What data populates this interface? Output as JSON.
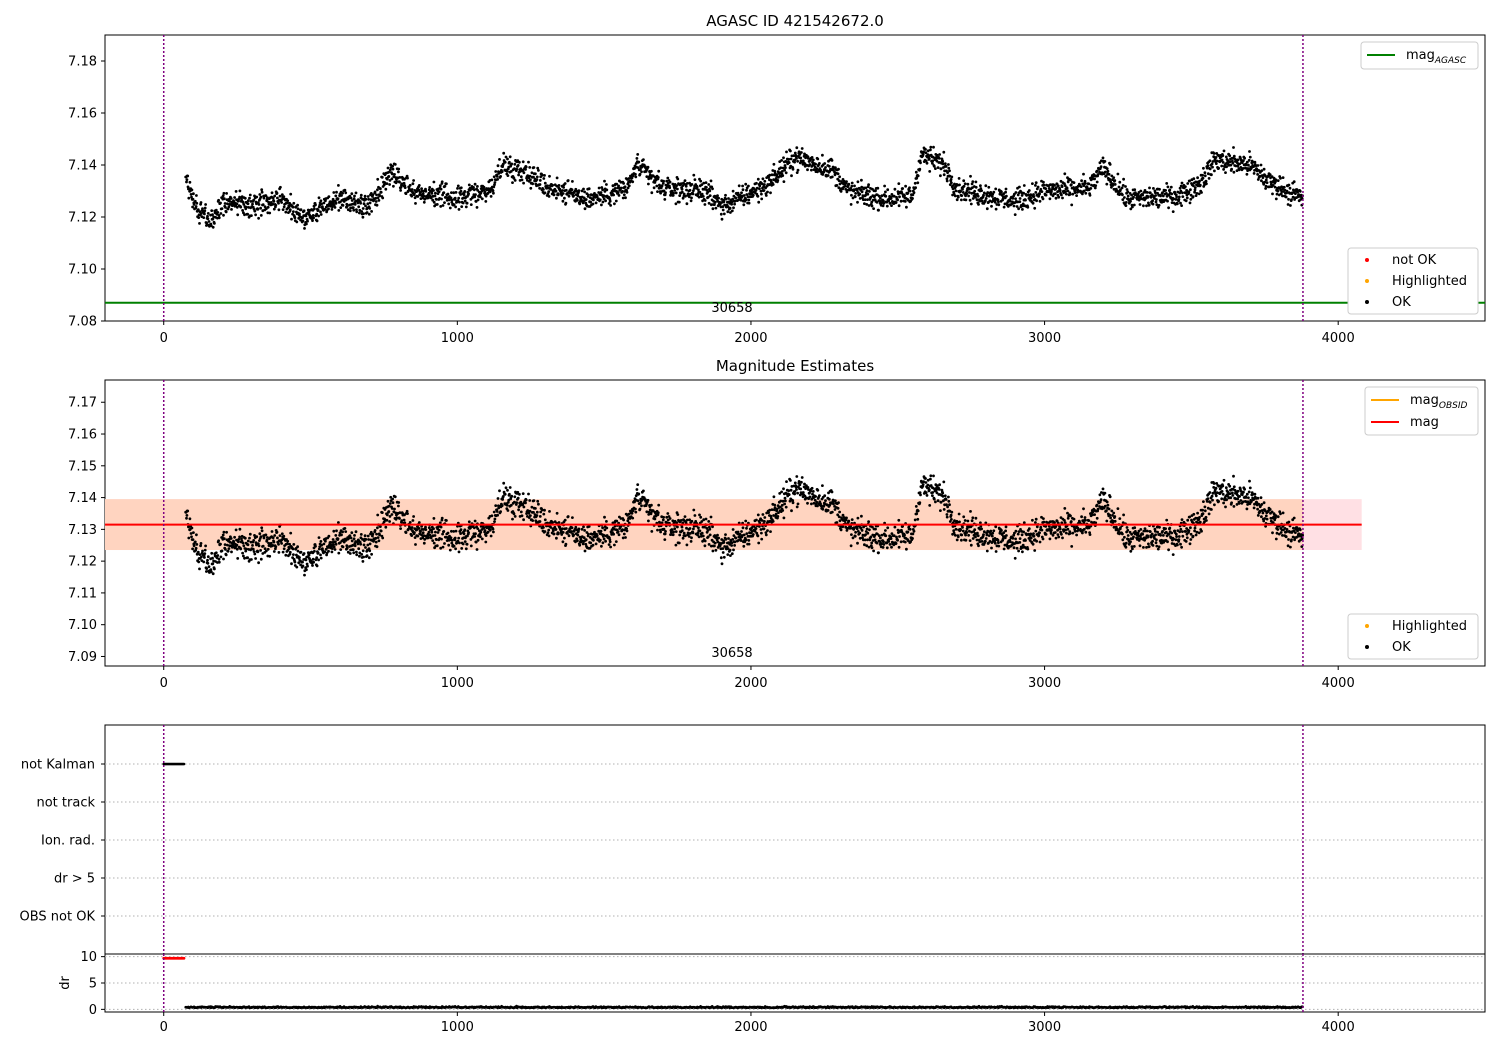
{
  "colors": {
    "ok": "#000000",
    "not_ok": "#ff0000",
    "highlighted": "#ffa500",
    "mag_agasc_line": "#008000",
    "mag_line": "#ff0000",
    "mag_obsid_line": "#ffa500",
    "band_pink": "#ffe0e4",
    "band_peach": "#ffd4c0",
    "obs_marker": "#800080"
  },
  "chart_data": [
    {
      "type": "scatter",
      "title": "AGASC ID 421542672.0",
      "xlim": [
        -200,
        4500
      ],
      "ylim": [
        7.08,
        7.19
      ],
      "x_ticks": [
        "0",
        "1000",
        "2000",
        "3000",
        "4000"
      ],
      "y_ticks": [
        "7.08",
        "7.10",
        "7.12",
        "7.14",
        "7.16",
        "7.18"
      ],
      "grid": false,
      "obs_markers_x": [
        0,
        3880
      ],
      "obs_label": "30658",
      "mag_agasc": 7.087,
      "legend_top": {
        "placement": "top-right",
        "entries": [
          {
            "label": "mag",
            "sub": "AGASC"
          }
        ]
      },
      "legend_bottom": {
        "placement": "lower-right",
        "entries": [
          "not OK",
          "Highlighted",
          "OK"
        ]
      },
      "series": [
        {
          "name": "OK",
          "description_x_range": [
            75,
            3880
          ],
          "description_level": 7.131
        },
        {
          "name": "Highlighted"
        },
        {
          "name": "not OK"
        }
      ]
    },
    {
      "type": "scatter",
      "title": "Magnitude Estimates",
      "xlim": [
        -200,
        4500
      ],
      "ylim": [
        7.087,
        7.177
      ],
      "x_ticks": [
        "0",
        "1000",
        "2000",
        "3000",
        "4000"
      ],
      "y_ticks": [
        "7.09",
        "7.10",
        "7.11",
        "7.12",
        "7.13",
        "7.14",
        "7.15",
        "7.16",
        "7.17"
      ],
      "grid": false,
      "obs_markers_x": [
        0,
        3880
      ],
      "obs_label": "30658",
      "mag": 7.1315,
      "mag_band": [
        7.1235,
        7.1395
      ],
      "band_x_range": [
        -200,
        4080
      ],
      "mag_obsid": 7.1315,
      "legend_top": {
        "placement": "top-right",
        "entries": [
          {
            "label": "mag",
            "sub": "OBSID"
          },
          {
            "label": "mag",
            "sub": ""
          }
        ]
      },
      "legend_bottom": {
        "placement": "lower-right",
        "entries": [
          "Highlighted",
          "OK"
        ]
      }
    },
    {
      "type": "scatter",
      "title": "",
      "xlim": [
        -200,
        4500
      ],
      "categories": [
        "not Kalman",
        "not track",
        "Ion. rad.",
        "dr > 5",
        "OBS not OK"
      ],
      "flag_segments": [
        {
          "category": "not Kalman",
          "x": [
            0,
            70
          ]
        }
      ],
      "obs_markers_x": [
        0,
        3880
      ]
    },
    {
      "type": "scatter",
      "title": "",
      "xlim": [
        -200,
        4500
      ],
      "ylim": [
        -0.5,
        10.5
      ],
      "ylabel": "dr",
      "x_ticks": [
        "0",
        "1000",
        "2000",
        "3000",
        "4000"
      ],
      "y_ticks": [
        "0",
        "5",
        "10"
      ],
      "dr_high_segment": {
        "x": [
          0,
          70
        ],
        "value": 9.7
      },
      "dr_typical": 0.3,
      "obs_markers_x": [
        0,
        3880
      ]
    }
  ]
}
